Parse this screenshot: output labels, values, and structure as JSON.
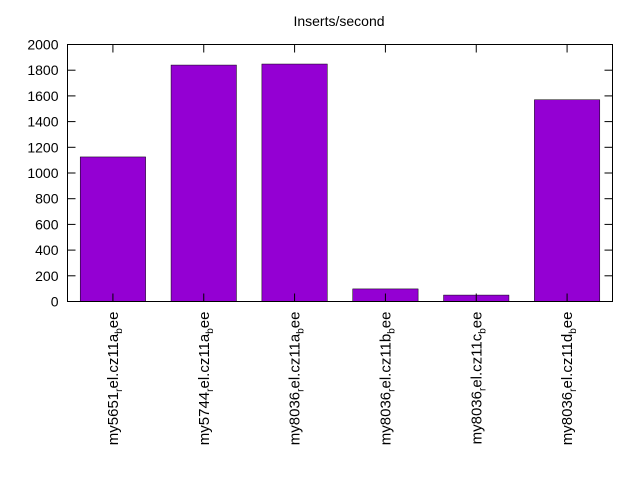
{
  "chart_data": {
    "type": "bar",
    "title": "Inserts/second",
    "xlabel": "",
    "ylabel": "",
    "ylim": [
      0,
      2000
    ],
    "yticks": [
      0,
      200,
      400,
      600,
      800,
      1000,
      1200,
      1400,
      1600,
      1800,
      2000
    ],
    "grid": false,
    "bar_color": "#9400d3",
    "categories": [
      {
        "main": "my5651",
        "sub1": "r",
        "mid": "el.cz11a",
        "sub2": "b",
        "end": "ee"
      },
      {
        "main": "my5744",
        "sub1": "r",
        "mid": "el.cz11a",
        "sub2": "b",
        "end": "ee"
      },
      {
        "main": "my8036",
        "sub1": "r",
        "mid": "el.cz11a",
        "sub2": "b",
        "end": "ee"
      },
      {
        "main": "my8036",
        "sub1": "r",
        "mid": "el.cz11b",
        "sub2": "b",
        "end": "ee"
      },
      {
        "main": "my8036",
        "sub1": "r",
        "mid": "el.cz11c",
        "sub2": "b",
        "end": "ee"
      },
      {
        "main": "my8036",
        "sub1": "r",
        "mid": "el.cz11d",
        "sub2": "b",
        "end": "ee"
      }
    ],
    "values": [
      1125,
      1840,
      1848,
      98,
      50,
      1570
    ]
  }
}
